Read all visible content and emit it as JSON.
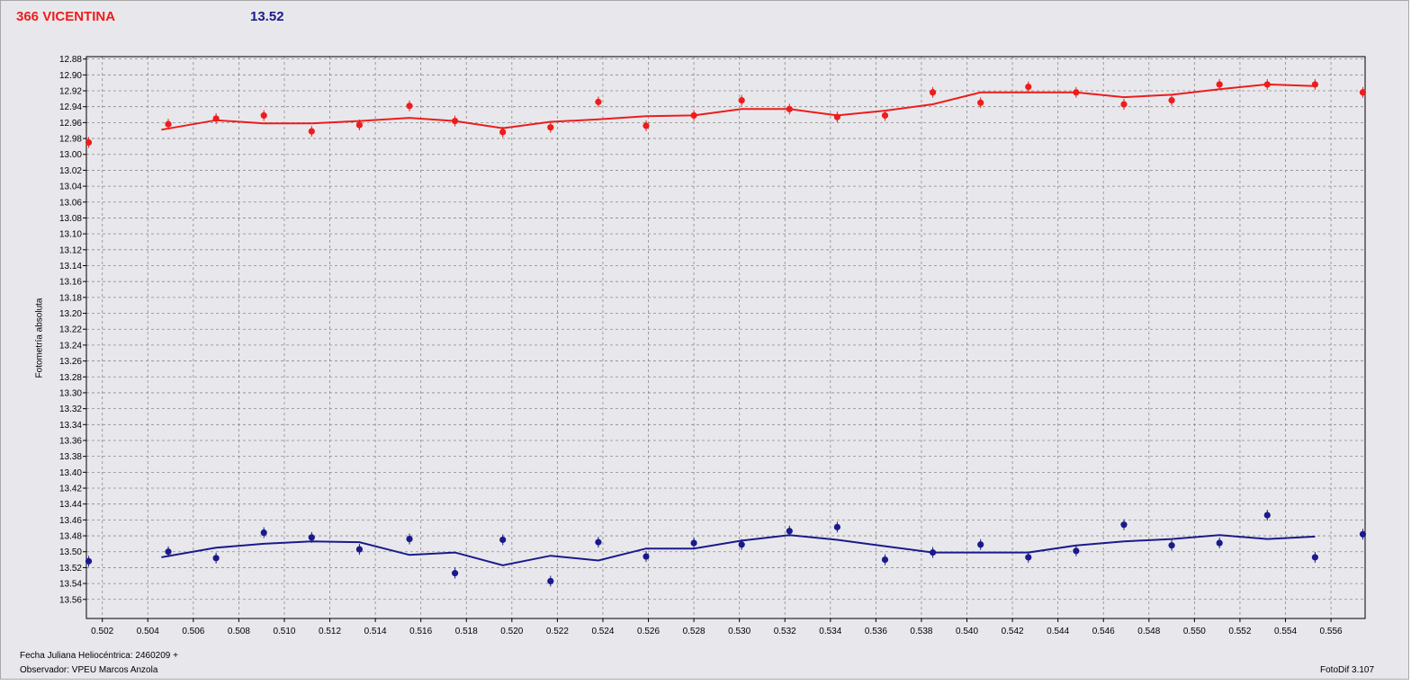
{
  "header": {
    "object_name": "366 VICENTINA",
    "magnitude": "13.52"
  },
  "footer": {
    "jd_label": "Fecha Juliana Heliocéntrica: 2460209 +",
    "observer": "Observador: VPEU Marcos Anzola",
    "software": "FotoDif 3.107"
  },
  "colors": {
    "series_red": "#ee1c1c",
    "series_blue": "#1a1a8c",
    "background": "#e8e8ec",
    "grid": "#8a8a8a"
  },
  "chart_data": {
    "type": "scatter",
    "ylabel": "Fotometría absoluta",
    "xlabel": "",
    "xlim": [
      0.5013,
      0.5575
    ],
    "ylim": [
      12.877,
      13.584
    ],
    "y_inverted": true,
    "grid": true,
    "x_ticks": [
      "0.502",
      "0.504",
      "0.506",
      "0.508",
      "0.510",
      "0.512",
      "0.514",
      "0.516",
      "0.518",
      "0.520",
      "0.522",
      "0.524",
      "0.526",
      "0.528",
      "0.530",
      "0.532",
      "0.534",
      "0.536",
      "0.538",
      "0.540",
      "0.542",
      "0.544",
      "0.546",
      "0.548",
      "0.550",
      "0.552",
      "0.554",
      "0.556"
    ],
    "y_ticks": [
      "12.88",
      "12.90",
      "12.92",
      "12.94",
      "12.96",
      "12.98",
      "13.00",
      "13.02",
      "13.04",
      "13.06",
      "13.08",
      "13.10",
      "13.12",
      "13.14",
      "13.16",
      "13.18",
      "13.20",
      "13.22",
      "13.24",
      "13.26",
      "13.28",
      "13.30",
      "13.32",
      "13.34",
      "13.36",
      "13.38",
      "13.40",
      "13.42",
      "13.44",
      "13.46",
      "13.48",
      "13.50",
      "13.52",
      "13.54",
      "13.56"
    ],
    "series": [
      {
        "color": "#ee1c1c",
        "points": [
          [
            0.5014,
            12.985
          ],
          [
            0.5049,
            12.962
          ],
          [
            0.507,
            12.955
          ],
          [
            0.5091,
            12.951
          ],
          [
            0.5112,
            12.971
          ],
          [
            0.5133,
            12.963
          ],
          [
            0.5155,
            12.939
          ],
          [
            0.5175,
            12.958
          ],
          [
            0.5196,
            12.972
          ],
          [
            0.5217,
            12.966
          ],
          [
            0.5238,
            12.934
          ],
          [
            0.5259,
            12.964
          ],
          [
            0.528,
            12.951
          ],
          [
            0.5301,
            12.932
          ],
          [
            0.5322,
            12.943
          ],
          [
            0.5343,
            12.953
          ],
          [
            0.5364,
            12.951
          ],
          [
            0.5385,
            12.922
          ],
          [
            0.5406,
            12.935
          ],
          [
            0.5427,
            12.915
          ],
          [
            0.5448,
            12.922
          ],
          [
            0.5469,
            12.937
          ],
          [
            0.549,
            12.932
          ],
          [
            0.5511,
            12.912
          ],
          [
            0.5532,
            12.912
          ],
          [
            0.5553,
            12.912
          ],
          [
            0.5574,
            12.922
          ]
        ],
        "fit": [
          [
            0.5046,
            12.969
          ],
          [
            0.507,
            12.957
          ],
          [
            0.5091,
            12.961
          ],
          [
            0.5112,
            12.961
          ],
          [
            0.5133,
            12.958
          ],
          [
            0.5155,
            12.954
          ],
          [
            0.5175,
            12.958
          ],
          [
            0.5196,
            12.967
          ],
          [
            0.5217,
            12.959
          ],
          [
            0.5238,
            12.956
          ],
          [
            0.5259,
            12.952
          ],
          [
            0.528,
            12.951
          ],
          [
            0.5301,
            12.943
          ],
          [
            0.5322,
            12.943
          ],
          [
            0.5343,
            12.951
          ],
          [
            0.5364,
            12.945
          ],
          [
            0.5385,
            12.937
          ],
          [
            0.5406,
            12.922
          ],
          [
            0.5427,
            12.922
          ],
          [
            0.5448,
            12.922
          ],
          [
            0.5469,
            12.928
          ],
          [
            0.549,
            12.925
          ],
          [
            0.5511,
            12.918
          ],
          [
            0.5532,
            12.912
          ],
          [
            0.5553,
            12.914
          ]
        ]
      },
      {
        "color": "#1a1a8c",
        "points": [
          [
            0.5014,
            13.512
          ],
          [
            0.5049,
            13.5
          ],
          [
            0.507,
            13.508
          ],
          [
            0.5091,
            13.476
          ],
          [
            0.5112,
            13.482
          ],
          [
            0.5133,
            13.497
          ],
          [
            0.5155,
            13.484
          ],
          [
            0.5175,
            13.527
          ],
          [
            0.5196,
            13.485
          ],
          [
            0.5217,
            13.537
          ],
          [
            0.5238,
            13.488
          ],
          [
            0.5259,
            13.506
          ],
          [
            0.528,
            13.489
          ],
          [
            0.5301,
            13.491
          ],
          [
            0.5322,
            13.474
          ],
          [
            0.5343,
            13.469
          ],
          [
            0.5364,
            13.51
          ],
          [
            0.5385,
            13.501
          ],
          [
            0.5406,
            13.491
          ],
          [
            0.5427,
            13.507
          ],
          [
            0.5448,
            13.499
          ],
          [
            0.5469,
            13.466
          ],
          [
            0.549,
            13.492
          ],
          [
            0.5511,
            13.489
          ],
          [
            0.5532,
            13.454
          ],
          [
            0.5553,
            13.507
          ],
          [
            0.5574,
            13.478
          ]
        ],
        "fit": [
          [
            0.5046,
            13.507
          ],
          [
            0.507,
            13.495
          ],
          [
            0.5091,
            13.49
          ],
          [
            0.5112,
            13.487
          ],
          [
            0.5133,
            13.488
          ],
          [
            0.5155,
            13.504
          ],
          [
            0.5175,
            13.501
          ],
          [
            0.5196,
            13.517
          ],
          [
            0.5217,
            13.505
          ],
          [
            0.5238,
            13.511
          ],
          [
            0.5259,
            13.496
          ],
          [
            0.528,
            13.496
          ],
          [
            0.5301,
            13.486
          ],
          [
            0.5322,
            13.479
          ],
          [
            0.5343,
            13.485
          ],
          [
            0.5364,
            13.493
          ],
          [
            0.5385,
            13.501
          ],
          [
            0.5406,
            13.501
          ],
          [
            0.5427,
            13.501
          ],
          [
            0.5448,
            13.492
          ],
          [
            0.5469,
            13.487
          ],
          [
            0.549,
            13.484
          ],
          [
            0.5511,
            13.479
          ],
          [
            0.5532,
            13.484
          ],
          [
            0.5553,
            13.481
          ]
        ]
      }
    ]
  }
}
